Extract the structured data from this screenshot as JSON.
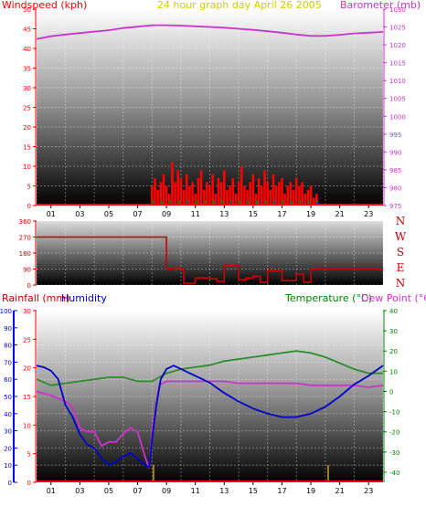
{
  "colors": {
    "wind": "#ff0000",
    "gust_green": "#008000",
    "gust_blue": "#0000ff",
    "barometer": "#cc33cc",
    "direction": "#cc0000",
    "humidity": "#0000cc",
    "temperature": "#2e8b2e",
    "dewpoint": "#cc33cc",
    "title": "#cccc00",
    "rain_axis": "#ff0000",
    "hum_axis": "#0000ff",
    "temp_axis": "#008000"
  },
  "chart_data": [
    {
      "type": "line",
      "title": "24 hour graph day   April 26 2005",
      "ylabel_left": "Windspeed (kph)",
      "ylabel_right": "Barometer (mb)",
      "x_ticks": [
        "01",
        "03",
        "05",
        "07",
        "09",
        "11",
        "13",
        "15",
        "17",
        "19",
        "21",
        "23"
      ],
      "y_left_ticks": [
        "0",
        "5",
        "10",
        "15",
        "20",
        "25",
        "30",
        "35",
        "40",
        "45",
        "50"
      ],
      "y_right_ticks": [
        "975",
        "980",
        "985",
        "990",
        "995",
        "1000",
        "1005",
        "1010",
        "1015",
        "1020",
        "1025",
        "1030"
      ],
      "ylim_left": [
        0,
        50
      ],
      "ylim_right": [
        975,
        1030
      ],
      "xlim": [
        0,
        24
      ],
      "series": [
        {
          "name": "Barometer (mb)",
          "axis": "right",
          "x": [
            0,
            1,
            2,
            3,
            4,
            5,
            6,
            7,
            8,
            9,
            10,
            11,
            12,
            13,
            14,
            15,
            16,
            17,
            18,
            19,
            20,
            21,
            22,
            23,
            24
          ],
          "y": [
            1021.6,
            1022.4,
            1022.9,
            1023.3,
            1023.7,
            1024.1,
            1024.7,
            1025.1,
            1025.5,
            1025.5,
            1025.4,
            1025.2,
            1025.0,
            1024.8,
            1024.5,
            1024.2,
            1023.8,
            1023.4,
            1022.9,
            1022.5,
            1022.5,
            1022.8,
            1023.2,
            1023.4,
            1023.6
          ]
        },
        {
          "name": "Windspeed (kph)",
          "axis": "left",
          "x": [
            8.0,
            8.2,
            8.4,
            8.6,
            8.8,
            9.0,
            9.2,
            9.4,
            9.6,
            9.8,
            10.0,
            10.2,
            10.4,
            10.6,
            10.8,
            11.0,
            11.2,
            11.4,
            11.6,
            11.8,
            12.0,
            12.2,
            12.4,
            12.6,
            12.8,
            13.0,
            13.2,
            13.4,
            13.6,
            13.8,
            14.0,
            14.2,
            14.4,
            14.6,
            14.8,
            15.0,
            15.2,
            15.4,
            15.6,
            15.8,
            16.0,
            16.2,
            16.4,
            16.6,
            16.8,
            17.0,
            17.2,
            17.4,
            17.6,
            17.8,
            18.0,
            18.2,
            18.4,
            18.6,
            18.8,
            19.0,
            19.2,
            19.4
          ],
          "y": [
            5,
            7,
            4,
            6,
            8,
            5,
            3,
            11,
            6,
            9,
            7,
            4,
            8,
            5,
            6,
            3,
            7,
            9,
            4,
            6,
            5,
            8,
            3,
            7,
            6,
            9,
            4,
            5,
            7,
            3,
            6,
            10,
            5,
            4,
            6,
            8,
            3,
            7,
            5,
            9,
            6,
            4,
            8,
            5,
            6,
            7,
            3,
            5,
            6,
            4,
            7,
            5,
            6,
            3,
            4,
            5,
            2,
            3
          ]
        }
      ]
    },
    {
      "type": "line",
      "title": "",
      "y_ticks": [
        "360",
        "270",
        "180",
        "90",
        "0"
      ],
      "y_right_labels": [
        "N",
        "W",
        "S",
        "E",
        "N"
      ],
      "ylim": [
        0,
        360
      ],
      "xlim": [
        0,
        24
      ],
      "series": [
        {
          "name": "Wind direction",
          "x": [
            0,
            4,
            8,
            8.9,
            9.0,
            9.5,
            10,
            10.2,
            11,
            12,
            12.5,
            13,
            14,
            14.5,
            15,
            15.5,
            16,
            17,
            18,
            18.5,
            19,
            24
          ],
          "y": [
            270,
            270,
            270,
            270,
            90,
            95,
            90,
            10,
            40,
            35,
            20,
            110,
            30,
            40,
            50,
            15,
            80,
            25,
            60,
            15,
            90,
            90
          ]
        }
      ]
    },
    {
      "type": "line",
      "title": "",
      "ylabel_left_rain": "Rainfall (mm)",
      "ylabel_left_hum": "Humidity",
      "ylabel_right_temp": "Temperature (°C)",
      "ylabel_right_dew": "Dew Point (°C)",
      "y_hum_ticks": [
        "0",
        "10",
        "20",
        "30",
        "40",
        "50",
        "60",
        "70",
        "80",
        "90",
        "100"
      ],
      "y_rain_ticks": [
        "0",
        "5",
        "10",
        "15",
        "20",
        "25",
        "30"
      ],
      "y_temp_ticks": [
        "-40",
        "-30",
        "-20",
        "-10",
        "0",
        "10",
        "20",
        "30",
        "40"
      ],
      "ylim_humidity": [
        0,
        100
      ],
      "ylim_rain": [
        0,
        30
      ],
      "ylim_temp": [
        -45,
        40
      ],
      "xlim": [
        0,
        24
      ],
      "series": [
        {
          "name": "Humidity",
          "axis": "humidity",
          "x": [
            0,
            0.5,
            1,
            1.5,
            2,
            2.5,
            3,
            3.5,
            4,
            4.5,
            5,
            5.5,
            6,
            6.5,
            7,
            7.5,
            7.8,
            8,
            8.3,
            8.6,
            9,
            9.5,
            10,
            11,
            12,
            13,
            14,
            15,
            16,
            17,
            18,
            19,
            20,
            21,
            22,
            23,
            24
          ],
          "y": [
            68,
            67,
            65,
            60,
            45,
            38,
            28,
            22,
            20,
            14,
            10,
            12,
            15,
            17,
            14,
            10,
            9,
            25,
            45,
            60,
            66,
            68,
            66,
            62,
            58,
            52,
            47,
            43,
            40,
            38,
            38,
            40,
            44,
            50,
            57,
            62,
            68
          ]
        },
        {
          "name": "Temperature (°C)",
          "axis": "temp",
          "x": [
            0,
            1,
            2,
            3,
            4,
            5,
            6,
            7,
            8,
            9,
            10,
            11,
            12,
            13,
            14,
            15,
            16,
            17,
            18,
            19,
            20,
            21,
            22,
            23,
            24
          ],
          "y": [
            6,
            3,
            4,
            5,
            6,
            7,
            7,
            5,
            5,
            9,
            11,
            12,
            13,
            15,
            16,
            17,
            18,
            19,
            20,
            19,
            17,
            14,
            11,
            9,
            9
          ]
        },
        {
          "name": "Dew Point (°C)",
          "axis": "temp",
          "x": [
            0,
            1,
            2,
            2.5,
            3,
            3.5,
            4,
            4.5,
            5,
            5.5,
            6,
            6.5,
            7,
            7.5,
            7.8,
            8,
            8.5,
            9,
            10,
            11,
            12,
            13,
            14,
            15,
            16,
            17,
            18,
            19,
            20,
            21,
            22,
            23,
            24
          ],
          "y": [
            0,
            -2,
            -5,
            -8,
            -18,
            -20,
            -20,
            -27,
            -25,
            -25,
            -21,
            -18,
            -20,
            -32,
            -38,
            -20,
            3,
            5,
            5,
            5,
            5,
            5,
            4,
            4,
            4,
            4,
            4,
            3,
            3,
            3,
            3,
            2,
            3
          ]
        },
        {
          "name": "Rainfall (mm)",
          "axis": "rain",
          "x": [
            8.1,
            20.2
          ],
          "y": [
            3,
            3
          ]
        }
      ]
    }
  ]
}
